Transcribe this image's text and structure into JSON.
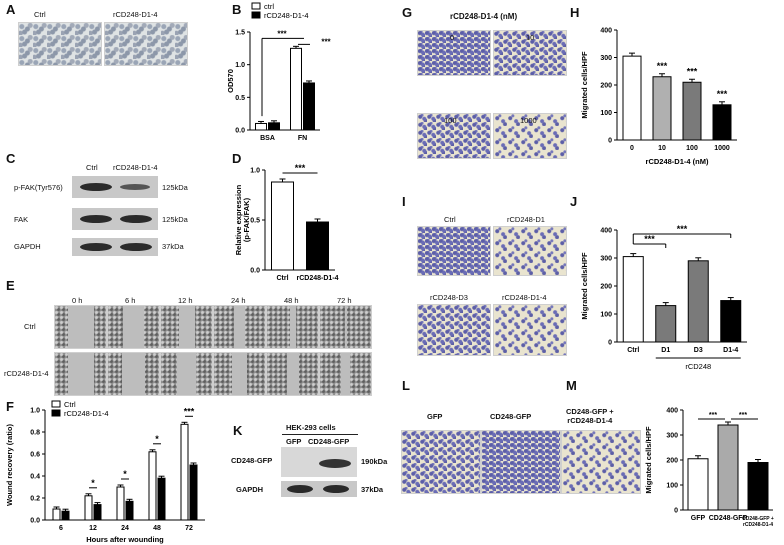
{
  "panels": {
    "A": {
      "label": "A",
      "images": [
        "Ctrl",
        "rCD248-D1-4"
      ]
    },
    "C": {
      "label": "C",
      "columns": [
        "Ctrl",
        "rCD248-D1-4"
      ],
      "rows": [
        {
          "name": "p-FAK(Tyr576)",
          "size": "125kDa"
        },
        {
          "name": "FAK",
          "size": "125kDa"
        },
        {
          "name": "GAPDH",
          "size": "37kDa"
        }
      ]
    },
    "E": {
      "label": "E",
      "times": [
        "0 h",
        "6 h",
        "12 h",
        "24 h",
        "48 h",
        "72 h"
      ],
      "rows": [
        "Ctrl",
        "rCD248-D1-4"
      ]
    },
    "G": {
      "label": "G",
      "title": "rCD248-D1-4 (nM)",
      "images": [
        "0",
        "10",
        "100",
        "1000"
      ]
    },
    "I": {
      "label": "I",
      "images": [
        "Ctrl",
        "rCD248-D1",
        "rCD248-D3",
        "rCD248-D1-4"
      ]
    },
    "K": {
      "label": "K",
      "title": "HEK-293 cells",
      "columns": [
        "GFP",
        "CD248-GFP"
      ],
      "rows": [
        {
          "name": "CD248-GFP",
          "size": "190kDa"
        },
        {
          "name": "GAPDH",
          "size": "37kDa"
        }
      ]
    },
    "L": {
      "label": "L",
      "images": [
        "GFP",
        "CD248-GFP",
        "CD248-GFP +\nrCD248-D1-4"
      ]
    }
  },
  "chart_data": [
    {
      "panel": "B",
      "type": "bar",
      "categories": [
        "BSA",
        "FN"
      ],
      "series": [
        {
          "name": "ctrl",
          "values": [
            0.1,
            1.25
          ]
        },
        {
          "name": "rCD248-D1-4",
          "values": [
            0.11,
            0.72
          ]
        }
      ],
      "ylabel": "OD570",
      "ylim": [
        0,
        1.5
      ],
      "yticks": [
        "0.0",
        "0.5",
        "1.0",
        "1.5"
      ],
      "annotations": [
        "***",
        "***"
      ],
      "legend": "top-left"
    },
    {
      "panel": "D",
      "type": "bar",
      "categories": [
        "Ctrl",
        "rCD248-D1-4"
      ],
      "values": [
        0.88,
        0.48
      ],
      "ylabel": "Relative expression\n(p-FAK/FAK)",
      "ylim": [
        0,
        1.0
      ],
      "yticks": [
        "0.0",
        "0.5",
        "1.0"
      ],
      "annotations": [
        "***"
      ]
    },
    {
      "panel": "F",
      "type": "bar",
      "categories": [
        "6",
        "12",
        "24",
        "48",
        "72"
      ],
      "series": [
        {
          "name": "Ctrl",
          "values": [
            0.1,
            0.22,
            0.3,
            0.62,
            0.87
          ]
        },
        {
          "name": "rCD248-D1-4",
          "values": [
            0.08,
            0.14,
            0.17,
            0.38,
            0.5
          ]
        }
      ],
      "xlabel": "Hours after wounding",
      "ylabel": "Wound recovery (ratio)",
      "ylim": [
        0,
        1.0
      ],
      "yticks": [
        "0.0",
        "0.2",
        "0.4",
        "0.6",
        "0.8",
        "1.0"
      ],
      "annotations": [
        "*",
        "*",
        "*",
        "***"
      ],
      "legend": "top-left"
    },
    {
      "panel": "H",
      "type": "bar",
      "categories": [
        "0",
        "10",
        "100",
        "1000"
      ],
      "values": [
        305,
        230,
        210,
        128
      ],
      "colors": [
        "#ffffff",
        "#b0b0b0",
        "#7a7a7a",
        "#000000"
      ],
      "xlabel": "rCD248-D1-4 (nM)",
      "ylabel": "Migrated cells/HPF",
      "ylim": [
        0,
        400
      ],
      "yticks": [
        "0",
        "100",
        "200",
        "300",
        "400"
      ],
      "annotations": [
        "***",
        "***",
        "***"
      ]
    },
    {
      "panel": "J",
      "type": "bar",
      "categories": [
        "Ctrl",
        "D1",
        "D3",
        "D1-4"
      ],
      "values": [
        305,
        130,
        290,
        148
      ],
      "colors": [
        "#ffffff",
        "#7a7a7a",
        "#7a7a7a",
        "#000000"
      ],
      "xlabel": "rCD248",
      "ylabel": "Migrated cells/HPF",
      "ylim": [
        0,
        400
      ],
      "yticks": [
        "0",
        "100",
        "200",
        "300",
        "400"
      ],
      "annotations": [
        "***",
        "***"
      ]
    },
    {
      "panel": "M",
      "type": "bar",
      "categories": [
        "GFP",
        "CD248-GFP",
        "CD248-GFP +\nrCD248-D1-4"
      ],
      "values": [
        205,
        340,
        190
      ],
      "colors": [
        "#ffffff",
        "#aaaaaa",
        "#000000"
      ],
      "ylabel": "Migrated cells/HPF",
      "ylim": [
        0,
        400
      ],
      "yticks": [
        "0",
        "100",
        "200",
        "300",
        "400"
      ],
      "annotations": [
        "***",
        "***"
      ]
    }
  ]
}
